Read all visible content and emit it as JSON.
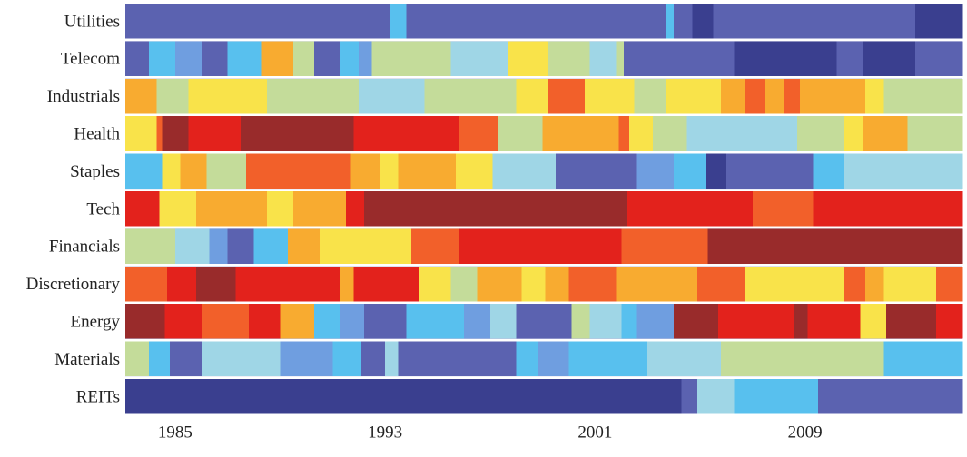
{
  "chart_data": {
    "type": "heatmap",
    "title": "",
    "xlabel": "",
    "ylabel": "",
    "x_ticks": [
      "1985",
      "1993",
      "2001",
      "2009"
    ],
    "x_tick_years": [
      1985,
      1993,
      2001,
      2009
    ],
    "x_range": [
      1983.6,
      2015.5
    ],
    "rank_scale": {
      "min": 1,
      "max": 11,
      "colors": [
        "#3a3f8f",
        "#5b62b0",
        "#6f9ee0",
        "#58c0ee",
        "#9fd6e6",
        "#c4dc9a",
        "#f9e34a",
        "#f8ab30",
        "#f2602a",
        "#e3221c",
        "#992b2b"
      ]
    },
    "rows": [
      {
        "name": "Utilities",
        "segments": [
          [
            1983.6,
            1992.6,
            2
          ],
          [
            1992.6,
            1993.7,
            2
          ],
          [
            1993.7,
            1994.3,
            4
          ],
          [
            1994.3,
            2004.2,
            2
          ],
          [
            2004.2,
            2004.5,
            4
          ],
          [
            2004.5,
            2005.2,
            2
          ],
          [
            2005.2,
            2006.0,
            1
          ],
          [
            2006.0,
            2011.8,
            2
          ],
          [
            2011.8,
            2013.7,
            2
          ],
          [
            2013.7,
            2015.5,
            1
          ]
        ]
      },
      {
        "name": "Telecom",
        "segments": [
          [
            1983.6,
            1984.5,
            2
          ],
          [
            1984.5,
            1985.5,
            4
          ],
          [
            1985.5,
            1986.5,
            3
          ],
          [
            1986.5,
            1987.5,
            2
          ],
          [
            1987.5,
            1988.8,
            4
          ],
          [
            1988.8,
            1990.0,
            8
          ],
          [
            1990.0,
            1990.8,
            6
          ],
          [
            1990.8,
            1991.8,
            2
          ],
          [
            1991.8,
            1992.5,
            4
          ],
          [
            1992.5,
            1993.0,
            3
          ],
          [
            1993.0,
            1994.0,
            6
          ],
          [
            1994.0,
            1996.0,
            6
          ],
          [
            1996.0,
            1998.2,
            5
          ],
          [
            1998.2,
            1999.7,
            7
          ],
          [
            1999.7,
            2001.3,
            6
          ],
          [
            2001.3,
            2002.3,
            5
          ],
          [
            2002.3,
            2002.6,
            6
          ],
          [
            2002.6,
            2006.0,
            2
          ],
          [
            2006.0,
            2006.8,
            2
          ],
          [
            2006.8,
            2010.7,
            1
          ],
          [
            2010.7,
            2011.7,
            2
          ],
          [
            2011.7,
            2013.7,
            1
          ],
          [
            2013.7,
            2015.5,
            2
          ]
        ]
      },
      {
        "name": "Industrials",
        "segments": [
          [
            1983.6,
            1984.8,
            8
          ],
          [
            1984.8,
            1986.0,
            6
          ],
          [
            1986.0,
            1987.3,
            7
          ],
          [
            1987.3,
            1989.0,
            7
          ],
          [
            1989.0,
            1992.5,
            6
          ],
          [
            1992.5,
            1995.0,
            5
          ],
          [
            1995.0,
            1998.5,
            6
          ],
          [
            1998.5,
            1999.7,
            7
          ],
          [
            1999.7,
            2001.1,
            9
          ],
          [
            2001.1,
            2003.0,
            7
          ],
          [
            2003.0,
            2004.2,
            6
          ],
          [
            2004.2,
            2006.3,
            7
          ],
          [
            2006.3,
            2007.2,
            8
          ],
          [
            2007.2,
            2008.0,
            9
          ],
          [
            2008.0,
            2008.7,
            8
          ],
          [
            2008.7,
            2009.3,
            9
          ],
          [
            2009.3,
            2011.8,
            8
          ],
          [
            2011.8,
            2012.5,
            7
          ],
          [
            2012.5,
            2015.5,
            6
          ]
        ]
      },
      {
        "name": "Health",
        "segments": [
          [
            1983.6,
            1984.8,
            7
          ],
          [
            1984.8,
            1985.0,
            9
          ],
          [
            1985.0,
            1986.0,
            11
          ],
          [
            1986.0,
            1988.0,
            10
          ],
          [
            1988.0,
            1992.3,
            11
          ],
          [
            1992.3,
            1994.0,
            10
          ],
          [
            1994.0,
            1996.3,
            10
          ],
          [
            1996.3,
            1997.8,
            9
          ],
          [
            1997.8,
            1999.5,
            6
          ],
          [
            1999.5,
            2001.0,
            8
          ],
          [
            2001.0,
            2002.4,
            8
          ],
          [
            2002.4,
            2002.8,
            9
          ],
          [
            2002.8,
            2003.7,
            7
          ],
          [
            2003.7,
            2005.0,
            6
          ],
          [
            2005.0,
            2009.2,
            5
          ],
          [
            2009.2,
            2011.0,
            6
          ],
          [
            2011.0,
            2011.7,
            7
          ],
          [
            2011.7,
            2013.4,
            8
          ],
          [
            2013.4,
            2015.5,
            6
          ]
        ]
      },
      {
        "name": "Staples",
        "segments": [
          [
            1983.6,
            1985.0,
            4
          ],
          [
            1985.0,
            1985.7,
            7
          ],
          [
            1985.7,
            1986.7,
            8
          ],
          [
            1986.7,
            1988.2,
            6
          ],
          [
            1988.2,
            1992.2,
            9
          ],
          [
            1992.2,
            1993.3,
            8
          ],
          [
            1993.3,
            1994.0,
            7
          ],
          [
            1994.0,
            1996.2,
            8
          ],
          [
            1996.2,
            1997.6,
            7
          ],
          [
            1997.6,
            1999.2,
            5
          ],
          [
            1999.2,
            2000.0,
            5
          ],
          [
            2000.0,
            2003.1,
            2
          ],
          [
            2003.1,
            2004.5,
            3
          ],
          [
            2004.5,
            2005.7,
            4
          ],
          [
            2005.7,
            2006.5,
            1
          ],
          [
            2006.5,
            2009.8,
            2
          ],
          [
            2009.8,
            2011.0,
            4
          ],
          [
            2011.0,
            2015.5,
            5
          ]
        ]
      },
      {
        "name": "Tech",
        "segments": [
          [
            1983.6,
            1984.9,
            10
          ],
          [
            1984.9,
            1986.3,
            7
          ],
          [
            1986.3,
            1987.3,
            8
          ],
          [
            1987.3,
            1989.0,
            8
          ],
          [
            1989.0,
            1990.0,
            7
          ],
          [
            1990.0,
            1992.0,
            8
          ],
          [
            1992.0,
            1992.7,
            10
          ],
          [
            1992.7,
            2002.7,
            11
          ],
          [
            2002.7,
            2005.3,
            10
          ],
          [
            2005.3,
            2006.5,
            10
          ],
          [
            2006.5,
            2007.5,
            10
          ],
          [
            2007.5,
            2008.5,
            9
          ],
          [
            2008.5,
            2009.8,
            9
          ],
          [
            2009.8,
            2011.8,
            10
          ],
          [
            2011.8,
            2015.5,
            10
          ]
        ]
      },
      {
        "name": "Financials",
        "segments": [
          [
            1983.6,
            1985.5,
            6
          ],
          [
            1985.5,
            1986.8,
            5
          ],
          [
            1986.8,
            1987.5,
            3
          ],
          [
            1987.5,
            1988.5,
            2
          ],
          [
            1988.5,
            1989.8,
            4
          ],
          [
            1989.8,
            1991.0,
            8
          ],
          [
            1991.0,
            1994.5,
            7
          ],
          [
            1994.5,
            1996.3,
            9
          ],
          [
            1996.3,
            1999.0,
            10
          ],
          [
            1999.0,
            2002.5,
            10
          ],
          [
            2002.5,
            2005.8,
            9
          ],
          [
            2005.8,
            2015.5,
            11
          ]
        ]
      },
      {
        "name": "Discretionary",
        "segments": [
          [
            1983.6,
            1985.2,
            9
          ],
          [
            1985.2,
            1986.3,
            10
          ],
          [
            1986.3,
            1987.8,
            11
          ],
          [
            1987.8,
            1991.8,
            10
          ],
          [
            1991.8,
            1992.3,
            8
          ],
          [
            1992.3,
            1993.6,
            10
          ],
          [
            1993.6,
            1994.8,
            10
          ],
          [
            1994.8,
            1996.0,
            7
          ],
          [
            1996.0,
            1997.0,
            6
          ],
          [
            1997.0,
            1998.7,
            8
          ],
          [
            1998.7,
            1999.6,
            7
          ],
          [
            1999.6,
            2000.5,
            8
          ],
          [
            2000.5,
            2002.3,
            9
          ],
          [
            2002.3,
            2005.4,
            8
          ],
          [
            2005.4,
            2007.2,
            9
          ],
          [
            2007.2,
            2011.0,
            7
          ],
          [
            2011.0,
            2011.8,
            9
          ],
          [
            2011.8,
            2012.5,
            8
          ],
          [
            2012.5,
            2014.5,
            7
          ],
          [
            2014.5,
            2015.5,
            9
          ]
        ]
      },
      {
        "name": "Energy",
        "segments": [
          [
            1983.6,
            1985.1,
            11
          ],
          [
            1985.1,
            1986.5,
            10
          ],
          [
            1986.5,
            1988.3,
            9
          ],
          [
            1988.3,
            1989.5,
            10
          ],
          [
            1989.5,
            1990.8,
            8
          ],
          [
            1990.8,
            1991.8,
            4
          ],
          [
            1991.8,
            1992.7,
            3
          ],
          [
            1992.7,
            1994.3,
            2
          ],
          [
            1994.3,
            1996.5,
            4
          ],
          [
            1996.5,
            1997.5,
            3
          ],
          [
            1997.5,
            1998.5,
            5
          ],
          [
            1998.5,
            2000.6,
            2
          ],
          [
            2000.6,
            2001.3,
            6
          ],
          [
            2001.3,
            2002.5,
            5
          ],
          [
            2002.5,
            2003.1,
            4
          ],
          [
            2003.1,
            2004.5,
            3
          ],
          [
            2004.5,
            2006.2,
            11
          ],
          [
            2006.2,
            2009.1,
            10
          ],
          [
            2009.1,
            2009.6,
            11
          ],
          [
            2009.6,
            2011.6,
            10
          ],
          [
            2011.6,
            2012.6,
            7
          ],
          [
            2012.6,
            2014.5,
            11
          ],
          [
            2014.5,
            2015.5,
            10
          ]
        ]
      },
      {
        "name": "Materials",
        "segments": [
          [
            1983.6,
            1984.5,
            6
          ],
          [
            1984.5,
            1985.3,
            4
          ],
          [
            1985.3,
            1986.5,
            2
          ],
          [
            1986.5,
            1987.5,
            5
          ],
          [
            1987.5,
            1989.5,
            5
          ],
          [
            1989.5,
            1991.5,
            3
          ],
          [
            1991.5,
            1992.6,
            4
          ],
          [
            1992.6,
            1993.5,
            2
          ],
          [
            1993.5,
            1994.0,
            5
          ],
          [
            1994.0,
            1998.5,
            2
          ],
          [
            1998.5,
            1999.3,
            4
          ],
          [
            1999.3,
            2000.5,
            3
          ],
          [
            2000.5,
            2001.3,
            4
          ],
          [
            2001.3,
            2003.5,
            4
          ],
          [
            2003.5,
            2006.3,
            5
          ],
          [
            2006.3,
            2012.5,
            6
          ],
          [
            2012.5,
            2015.5,
            4
          ]
        ]
      },
      {
        "name": "REITs",
        "segments": [
          [
            1983.6,
            2004.8,
            1
          ],
          [
            2004.8,
            2005.4,
            2
          ],
          [
            2005.4,
            2006.8,
            5
          ],
          [
            2006.8,
            2008.5,
            4
          ],
          [
            2008.5,
            2010.0,
            4
          ],
          [
            2010.0,
            2015.5,
            2
          ]
        ]
      }
    ]
  }
}
